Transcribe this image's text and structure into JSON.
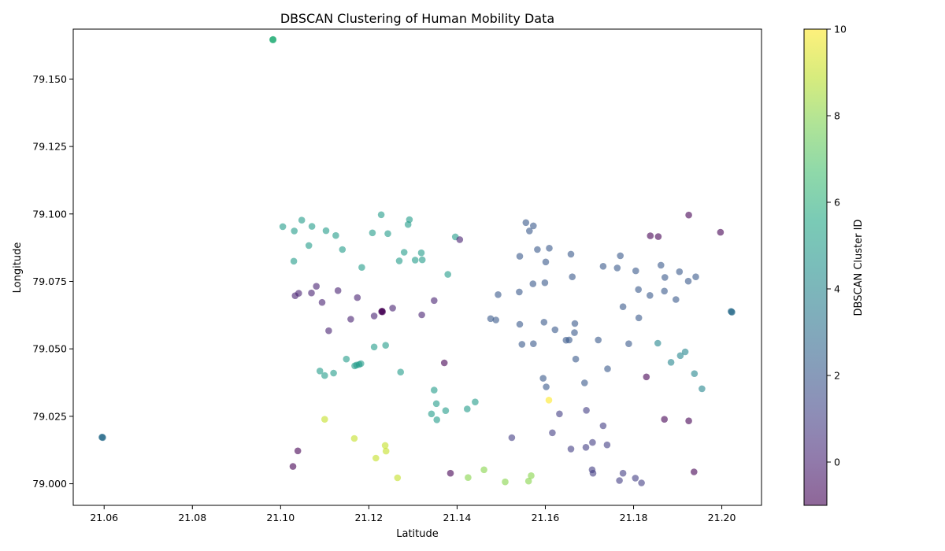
{
  "chart_data": {
    "type": "scatter",
    "title": "DBSCAN Clustering of Human Mobility Data",
    "xlabel": "Latitude",
    "ylabel": "Longitude",
    "xlim": [
      21.053,
      21.209
    ],
    "ylim": [
      78.992,
      79.1685
    ],
    "xticks": [
      "21.06",
      "21.08",
      "21.10",
      "21.12",
      "21.14",
      "21.16",
      "21.18",
      "21.20"
    ],
    "xtick_values": [
      21.06,
      21.08,
      21.1,
      21.12,
      21.14,
      21.16,
      21.18,
      21.2
    ],
    "yticks": [
      "79.000",
      "79.025",
      "79.050",
      "79.075",
      "79.100",
      "79.125",
      "79.150"
    ],
    "ytick_values": [
      79.0,
      79.025,
      79.05,
      79.075,
      79.1,
      79.125,
      79.15
    ],
    "grid": false,
    "marker_alpha": 0.6,
    "colormap": "viridis",
    "colorbar": {
      "label": "DBSCAN Cluster ID",
      "min": -1,
      "max": 10,
      "ticks": [
        "10",
        "8",
        "6",
        "4",
        "2",
        "0"
      ],
      "tick_values": [
        10,
        8,
        6,
        4,
        2,
        0
      ]
    },
    "points": [
      [
        21.0983,
        79.1647,
        6
      ],
      [
        21.0983,
        79.1645,
        6
      ],
      [
        21.0982,
        79.1646,
        6
      ],
      [
        21.0596,
        79.0173,
        3
      ],
      [
        21.0597,
        79.0171,
        3
      ],
      [
        21.0595,
        79.0172,
        3
      ],
      [
        21.123,
        79.064,
        -1
      ],
      [
        21.1229,
        79.0638,
        -1
      ],
      [
        21.1231,
        79.0637,
        -1
      ],
      [
        21.2022,
        79.0637,
        3
      ],
      [
        21.2021,
        79.0639,
        3
      ],
      [
        21.2023,
        79.0636,
        3
      ],
      [
        21.1172,
        79.044,
        5
      ],
      [
        21.1168,
        79.0437,
        5
      ],
      [
        21.1182,
        79.0445,
        5
      ],
      [
        21.1178,
        79.0442,
        5
      ],
      [
        21.1005,
        79.0953,
        5
      ],
      [
        21.1031,
        79.0937,
        5
      ],
      [
        21.1048,
        79.0977,
        5
      ],
      [
        21.1071,
        79.0954,
        5
      ],
      [
        21.1103,
        79.0938,
        5
      ],
      [
        21.1125,
        79.092,
        5
      ],
      [
        21.1064,
        79.0883,
        5
      ],
      [
        21.114,
        79.0868,
        5
      ],
      [
        21.103,
        79.0825,
        5
      ],
      [
        21.1184,
        79.0802,
        5
      ],
      [
        21.1208,
        79.093,
        5
      ],
      [
        21.1228,
        79.0997,
        5
      ],
      [
        21.1243,
        79.0927,
        5
      ],
      [
        21.1289,
        79.0961,
        5
      ],
      [
        21.1292,
        79.0979,
        5
      ],
      [
        21.128,
        79.0858,
        5
      ],
      [
        21.1269,
        79.0826,
        5
      ],
      [
        21.1305,
        79.0829,
        5
      ],
      [
        21.1319,
        79.0856,
        5
      ],
      [
        21.1321,
        79.083,
        5
      ],
      [
        21.1396,
        79.0915,
        5
      ],
      [
        21.1379,
        79.0776,
        5
      ],
      [
        21.1089,
        79.0418,
        5
      ],
      [
        21.11,
        79.0401,
        5
      ],
      [
        21.112,
        79.041,
        5
      ],
      [
        21.1149,
        79.0462,
        5
      ],
      [
        21.1212,
        79.0507,
        5
      ],
      [
        21.1238,
        79.0513,
        5
      ],
      [
        21.1272,
        79.0414,
        5
      ],
      [
        21.1348,
        79.0347,
        5
      ],
      [
        21.1353,
        79.0297,
        5
      ],
      [
        21.1342,
        79.0259,
        5
      ],
      [
        21.1354,
        79.0237,
        5
      ],
      [
        21.1374,
        79.0271,
        5
      ],
      [
        21.1423,
        79.0277,
        5
      ],
      [
        21.1441,
        79.0303,
        5
      ],
      [
        21.1556,
        79.0968,
        2
      ],
      [
        21.1564,
        79.0937,
        2
      ],
      [
        21.1573,
        79.0956,
        2
      ],
      [
        21.1609,
        79.0873,
        2
      ],
      [
        21.1582,
        79.0868,
        2
      ],
      [
        21.1542,
        79.0843,
        2
      ],
      [
        21.1601,
        79.0822,
        2
      ],
      [
        21.1658,
        79.0851,
        2
      ],
      [
        21.1661,
        79.0767,
        2
      ],
      [
        21.1572,
        79.0741,
        2
      ],
      [
        21.1599,
        79.0745,
        2
      ],
      [
        21.1541,
        79.0711,
        2
      ],
      [
        21.1493,
        79.0701,
        2
      ],
      [
        21.1476,
        79.0612,
        2
      ],
      [
        21.1488,
        79.0607,
        2
      ],
      [
        21.1542,
        79.0591,
        2
      ],
      [
        21.1597,
        79.0599,
        2
      ],
      [
        21.1622,
        79.0571,
        2
      ],
      [
        21.1667,
        79.0594,
        2
      ],
      [
        21.1666,
        79.056,
        2
      ],
      [
        21.1647,
        79.0532,
        2
      ],
      [
        21.1654,
        79.0533,
        2
      ],
      [
        21.1547,
        79.0517,
        2
      ],
      [
        21.1573,
        79.0519,
        2
      ],
      [
        21.1669,
        79.0462,
        2
      ],
      [
        21.1595,
        79.0391,
        2
      ],
      [
        21.1602,
        79.0359,
        2
      ],
      [
        21.1689,
        79.0374,
        2
      ],
      [
        21.172,
        79.0533,
        2
      ],
      [
        21.1741,
        79.0426,
        2
      ],
      [
        21.1789,
        79.0519,
        2
      ],
      [
        21.1812,
        79.0615,
        2
      ],
      [
        21.1776,
        79.0656,
        2
      ],
      [
        21.1731,
        79.0806,
        2
      ],
      [
        21.1763,
        79.08,
        2
      ],
      [
        21.177,
        79.0845,
        2
      ],
      [
        21.1805,
        79.0789,
        2
      ],
      [
        21.1811,
        79.072,
        2
      ],
      [
        21.1837,
        79.0698,
        2
      ],
      [
        21.1862,
        79.081,
        2
      ],
      [
        21.1871,
        79.0765,
        2
      ],
      [
        21.187,
        79.0714,
        2
      ],
      [
        21.1896,
        79.0683,
        2
      ],
      [
        21.1904,
        79.0786,
        2
      ],
      [
        21.1924,
        79.0751,
        2
      ],
      [
        21.1941,
        79.0767,
        2
      ],
      [
        21.1855,
        79.0521,
        4
      ],
      [
        21.1906,
        79.0475,
        4
      ],
      [
        21.1917,
        79.0489,
        4
      ],
      [
        21.1885,
        79.045,
        4
      ],
      [
        21.1938,
        79.0408,
        4
      ],
      [
        21.1955,
        79.0352,
        4
      ],
      [
        21.1524,
        79.0171,
        1
      ],
      [
        21.1616,
        79.0189,
        1
      ],
      [
        21.1632,
        79.0259,
        1
      ],
      [
        21.1693,
        79.0272,
        1
      ],
      [
        21.1731,
        79.0215,
        1
      ],
      [
        21.1658,
        79.0129,
        1
      ],
      [
        21.1692,
        79.0135,
        1
      ],
      [
        21.1707,
        79.0153,
        1
      ],
      [
        21.174,
        79.0144,
        1
      ],
      [
        21.1706,
        79.0052,
        1
      ],
      [
        21.1708,
        79.0039,
        1
      ],
      [
        21.1776,
        79.0039,
        1
      ],
      [
        21.1768,
        79.0012,
        1
      ],
      [
        21.1804,
        79.0021,
        1
      ],
      [
        21.1818,
        79.0003,
        1
      ],
      [
        21.1406,
        79.0905,
        0
      ],
      [
        21.1033,
        79.0697,
        0
      ],
      [
        21.1041,
        79.0706,
        0
      ],
      [
        21.107,
        79.0707,
        0
      ],
      [
        21.1081,
        79.0732,
        0
      ],
      [
        21.1094,
        79.0672,
        0
      ],
      [
        21.113,
        79.0716,
        0
      ],
      [
        21.1174,
        79.069,
        0
      ],
      [
        21.1254,
        79.0651,
        0
      ],
      [
        21.1348,
        79.0679,
        0
      ],
      [
        21.132,
        79.0626,
        0
      ],
      [
        21.1212,
        79.0622,
        0
      ],
      [
        21.1159,
        79.061,
        0
      ],
      [
        21.1109,
        79.0567,
        0
      ],
      [
        21.1371,
        79.0448,
        -1
      ],
      [
        21.1838,
        79.0919,
        -1
      ],
      [
        21.1856,
        79.0916,
        -1
      ],
      [
        21.1925,
        79.0996,
        -1
      ],
      [
        21.1997,
        79.0932,
        -1
      ],
      [
        21.1829,
        79.0396,
        -1
      ],
      [
        21.187,
        79.0239,
        -1
      ],
      [
        21.1925,
        79.0233,
        -1
      ],
      [
        21.1937,
        79.0044,
        -1
      ],
      [
        21.1039,
        79.0122,
        -1
      ],
      [
        21.1028,
        79.0064,
        -1
      ],
      [
        21.1385,
        79.0039,
        -1
      ],
      [
        21.11,
        79.0239,
        9
      ],
      [
        21.1167,
        79.0168,
        9
      ],
      [
        21.1237,
        79.0142,
        9
      ],
      [
        21.1239,
        79.0121,
        9
      ],
      [
        21.1216,
        79.0095,
        9
      ],
      [
        21.1265,
        79.0022,
        9
      ],
      [
        21.1425,
        79.0023,
        8
      ],
      [
        21.1461,
        79.0052,
        8
      ],
      [
        21.1509,
        79.0007,
        8
      ],
      [
        21.1568,
        79.003,
        8
      ],
      [
        21.1562,
        79.001,
        8
      ],
      [
        21.1608,
        79.031,
        10
      ]
    ]
  }
}
